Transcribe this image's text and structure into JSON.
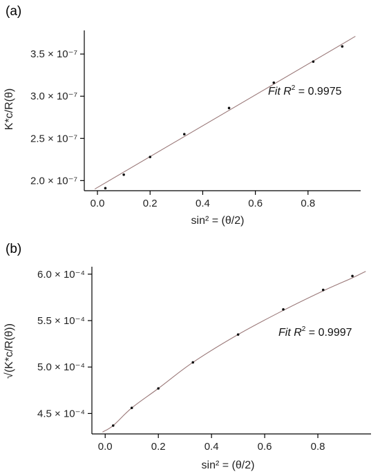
{
  "chart_data": [
    {
      "type": "scatter",
      "panel_label": "(a)",
      "xlabel": "sin² = (θ/2)",
      "ylabel": "K*c/R(θ)",
      "xlim": [
        -0.05,
        1.0
      ],
      "ylim": [
        1.88e-07,
        3.78e-07
      ],
      "xticks": [
        0.0,
        0.2,
        0.4,
        0.6,
        0.8
      ],
      "xtick_labels": [
        "0.0",
        "0.2",
        "0.4",
        "0.6",
        "0.8"
      ],
      "yticks": [
        2e-07,
        2.5e-07,
        3e-07,
        3.5e-07
      ],
      "ytick_labels": [
        "2.0 × 10⁻⁷",
        "2.5 × 10⁻⁷",
        "3.0 × 10⁻⁷",
        "3.5 × 10⁻⁷"
      ],
      "points": {
        "x": [
          0.03,
          0.1,
          0.2,
          0.33,
          0.5,
          0.67,
          0.82,
          0.93
        ],
        "y": [
          1.91e-07,
          2.07e-07,
          2.28e-07,
          2.55e-07,
          2.86e-07,
          3.16e-07,
          3.41e-07,
          3.59e-07
        ]
      },
      "fit": {
        "kind": "linear",
        "x": [
          -0.01,
          0.98
        ],
        "y": [
          1.9e-07,
          3.71e-07
        ],
        "annotation_italic": "Fit R",
        "annotation_sup": "2",
        "annotation_rest": " = 0.9975"
      },
      "grid": false
    },
    {
      "type": "scatter",
      "panel_label": "(b)",
      "xlabel": "sin² = (θ/2)",
      "ylabel": "√(K*c/R(θ))",
      "xlim": [
        -0.05,
        1.0
      ],
      "ylim": [
        0.000428,
        0.000608
      ],
      "xticks": [
        0.0,
        0.2,
        0.4,
        0.6,
        0.8
      ],
      "xtick_labels": [
        "0.0",
        "0.2",
        "0.4",
        "0.6",
        "0.8"
      ],
      "yticks": [
        0.00045,
        0.0005,
        0.00055,
        0.0006
      ],
      "ytick_labels": [
        "4.5 × 10⁻⁴",
        "5.0 × 10⁻⁴",
        "5.5 × 10⁻⁴",
        "6.0 × 10⁻⁴"
      ],
      "points": {
        "x": [
          0.03,
          0.1,
          0.2,
          0.33,
          0.5,
          0.67,
          0.82,
          0.93
        ],
        "y": [
          0.000437,
          0.000456,
          0.000477,
          0.000505,
          0.000535,
          0.000562,
          0.000583,
          0.000598
        ]
      },
      "fit": {
        "kind": "curve",
        "x": [
          -0.01,
          0.03,
          0.1,
          0.2,
          0.33,
          0.5,
          0.67,
          0.82,
          0.93,
          0.98
        ],
        "y": [
          0.00043,
          0.000437,
          0.000456,
          0.000477,
          0.000505,
          0.000535,
          0.000561,
          0.000582,
          0.000596,
          0.000603
        ],
        "annotation_italic": "Fit R",
        "annotation_sup": "2",
        "annotation_rest": " = 0.9997"
      },
      "grid": false
    }
  ]
}
